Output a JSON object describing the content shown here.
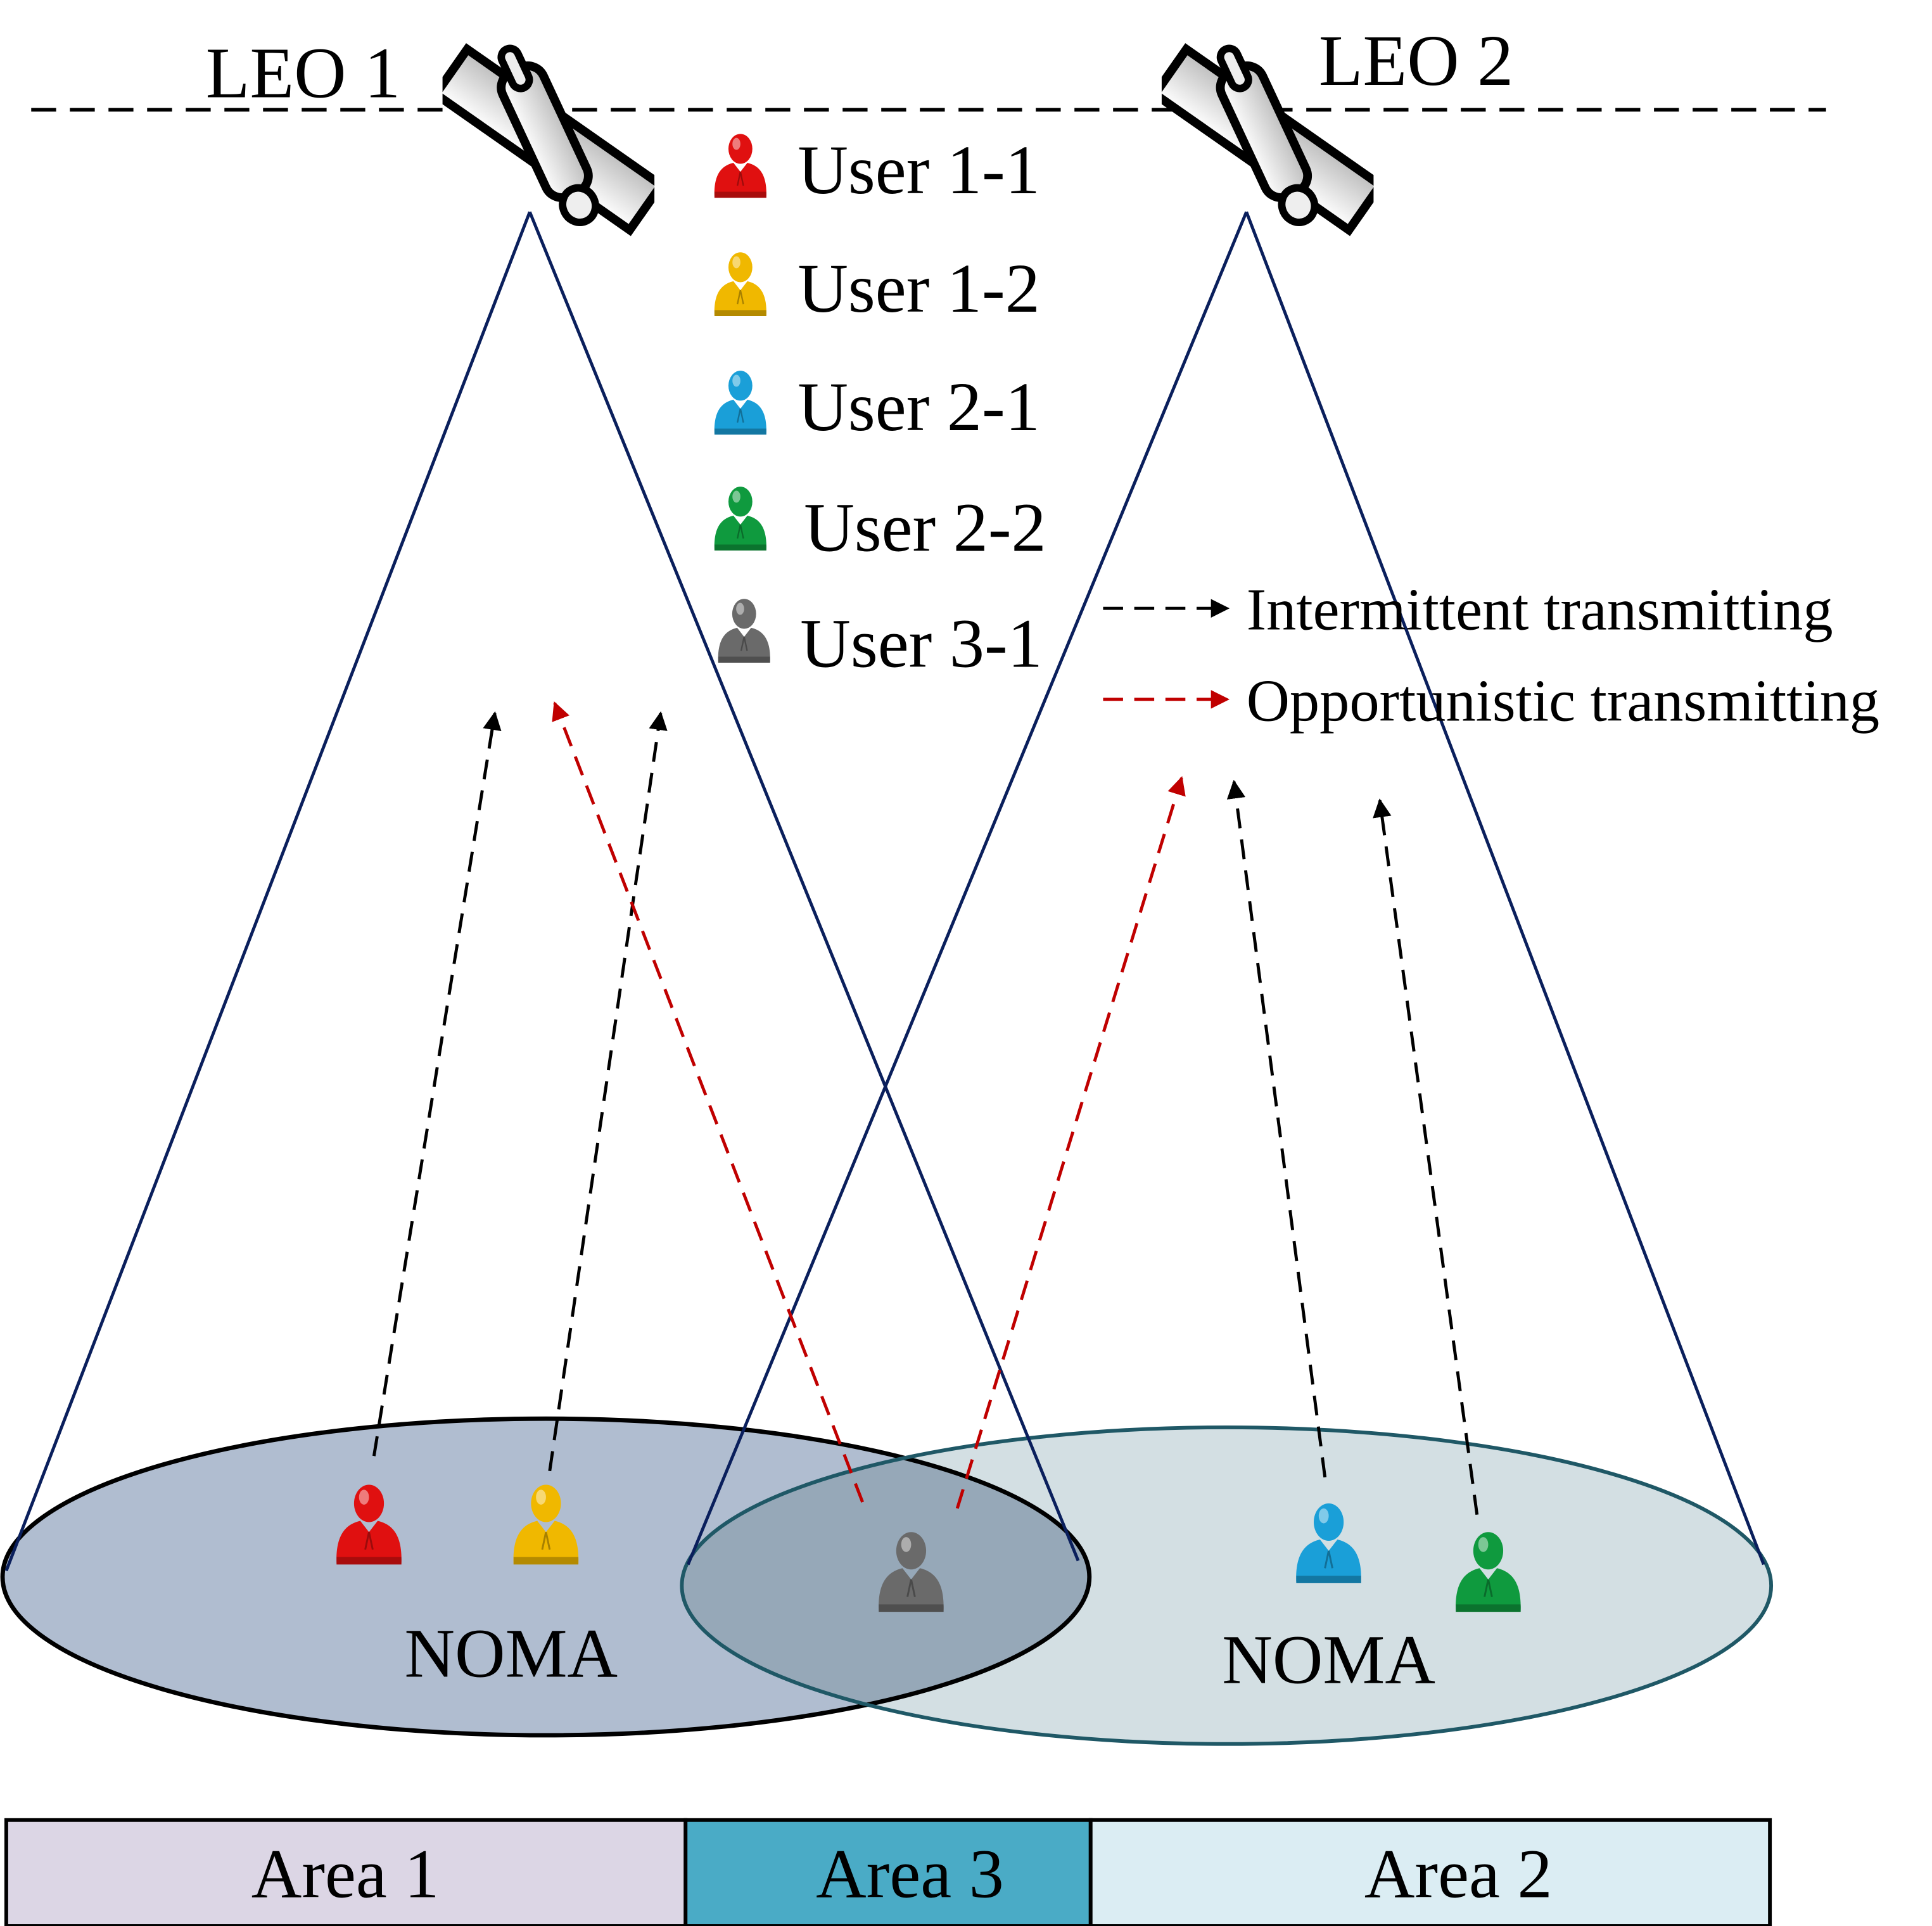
{
  "satellites": [
    {
      "label": "LEO 1"
    },
    {
      "label": "LEO 2"
    }
  ],
  "legend": {
    "users": [
      {
        "label": "User 1-1",
        "color": "#e01010"
      },
      {
        "label": "User 1-2",
        "color": "#f0b800"
      },
      {
        "label": "User 2-1",
        "color": "#1a9fd8"
      },
      {
        "label": "User 2-2",
        "color": "#0f9a3e"
      },
      {
        "label": "User 3-1",
        "color": "#6a6a6a"
      }
    ],
    "arrows": [
      {
        "label": "Intermittent transmitting",
        "color": "#000000"
      },
      {
        "label": "Opportunistic transmitting",
        "color": "#c00000"
      }
    ]
  },
  "coverage": [
    {
      "label": "NOMA",
      "fill": "#b0bdd0",
      "stroke": "#000000"
    },
    {
      "label": "NOMA",
      "fill": "#d3dfe3",
      "stroke": "#1f5866"
    }
  ],
  "overlap_fill": "#96a8b8",
  "beam_color": "#0a1f5c",
  "areas": [
    {
      "label": "Area 1",
      "color": "#dcd6e5"
    },
    {
      "label": "Area 3",
      "color": "#4aabc6"
    },
    {
      "label": "Area 2",
      "color": "#dbedf3"
    }
  ]
}
